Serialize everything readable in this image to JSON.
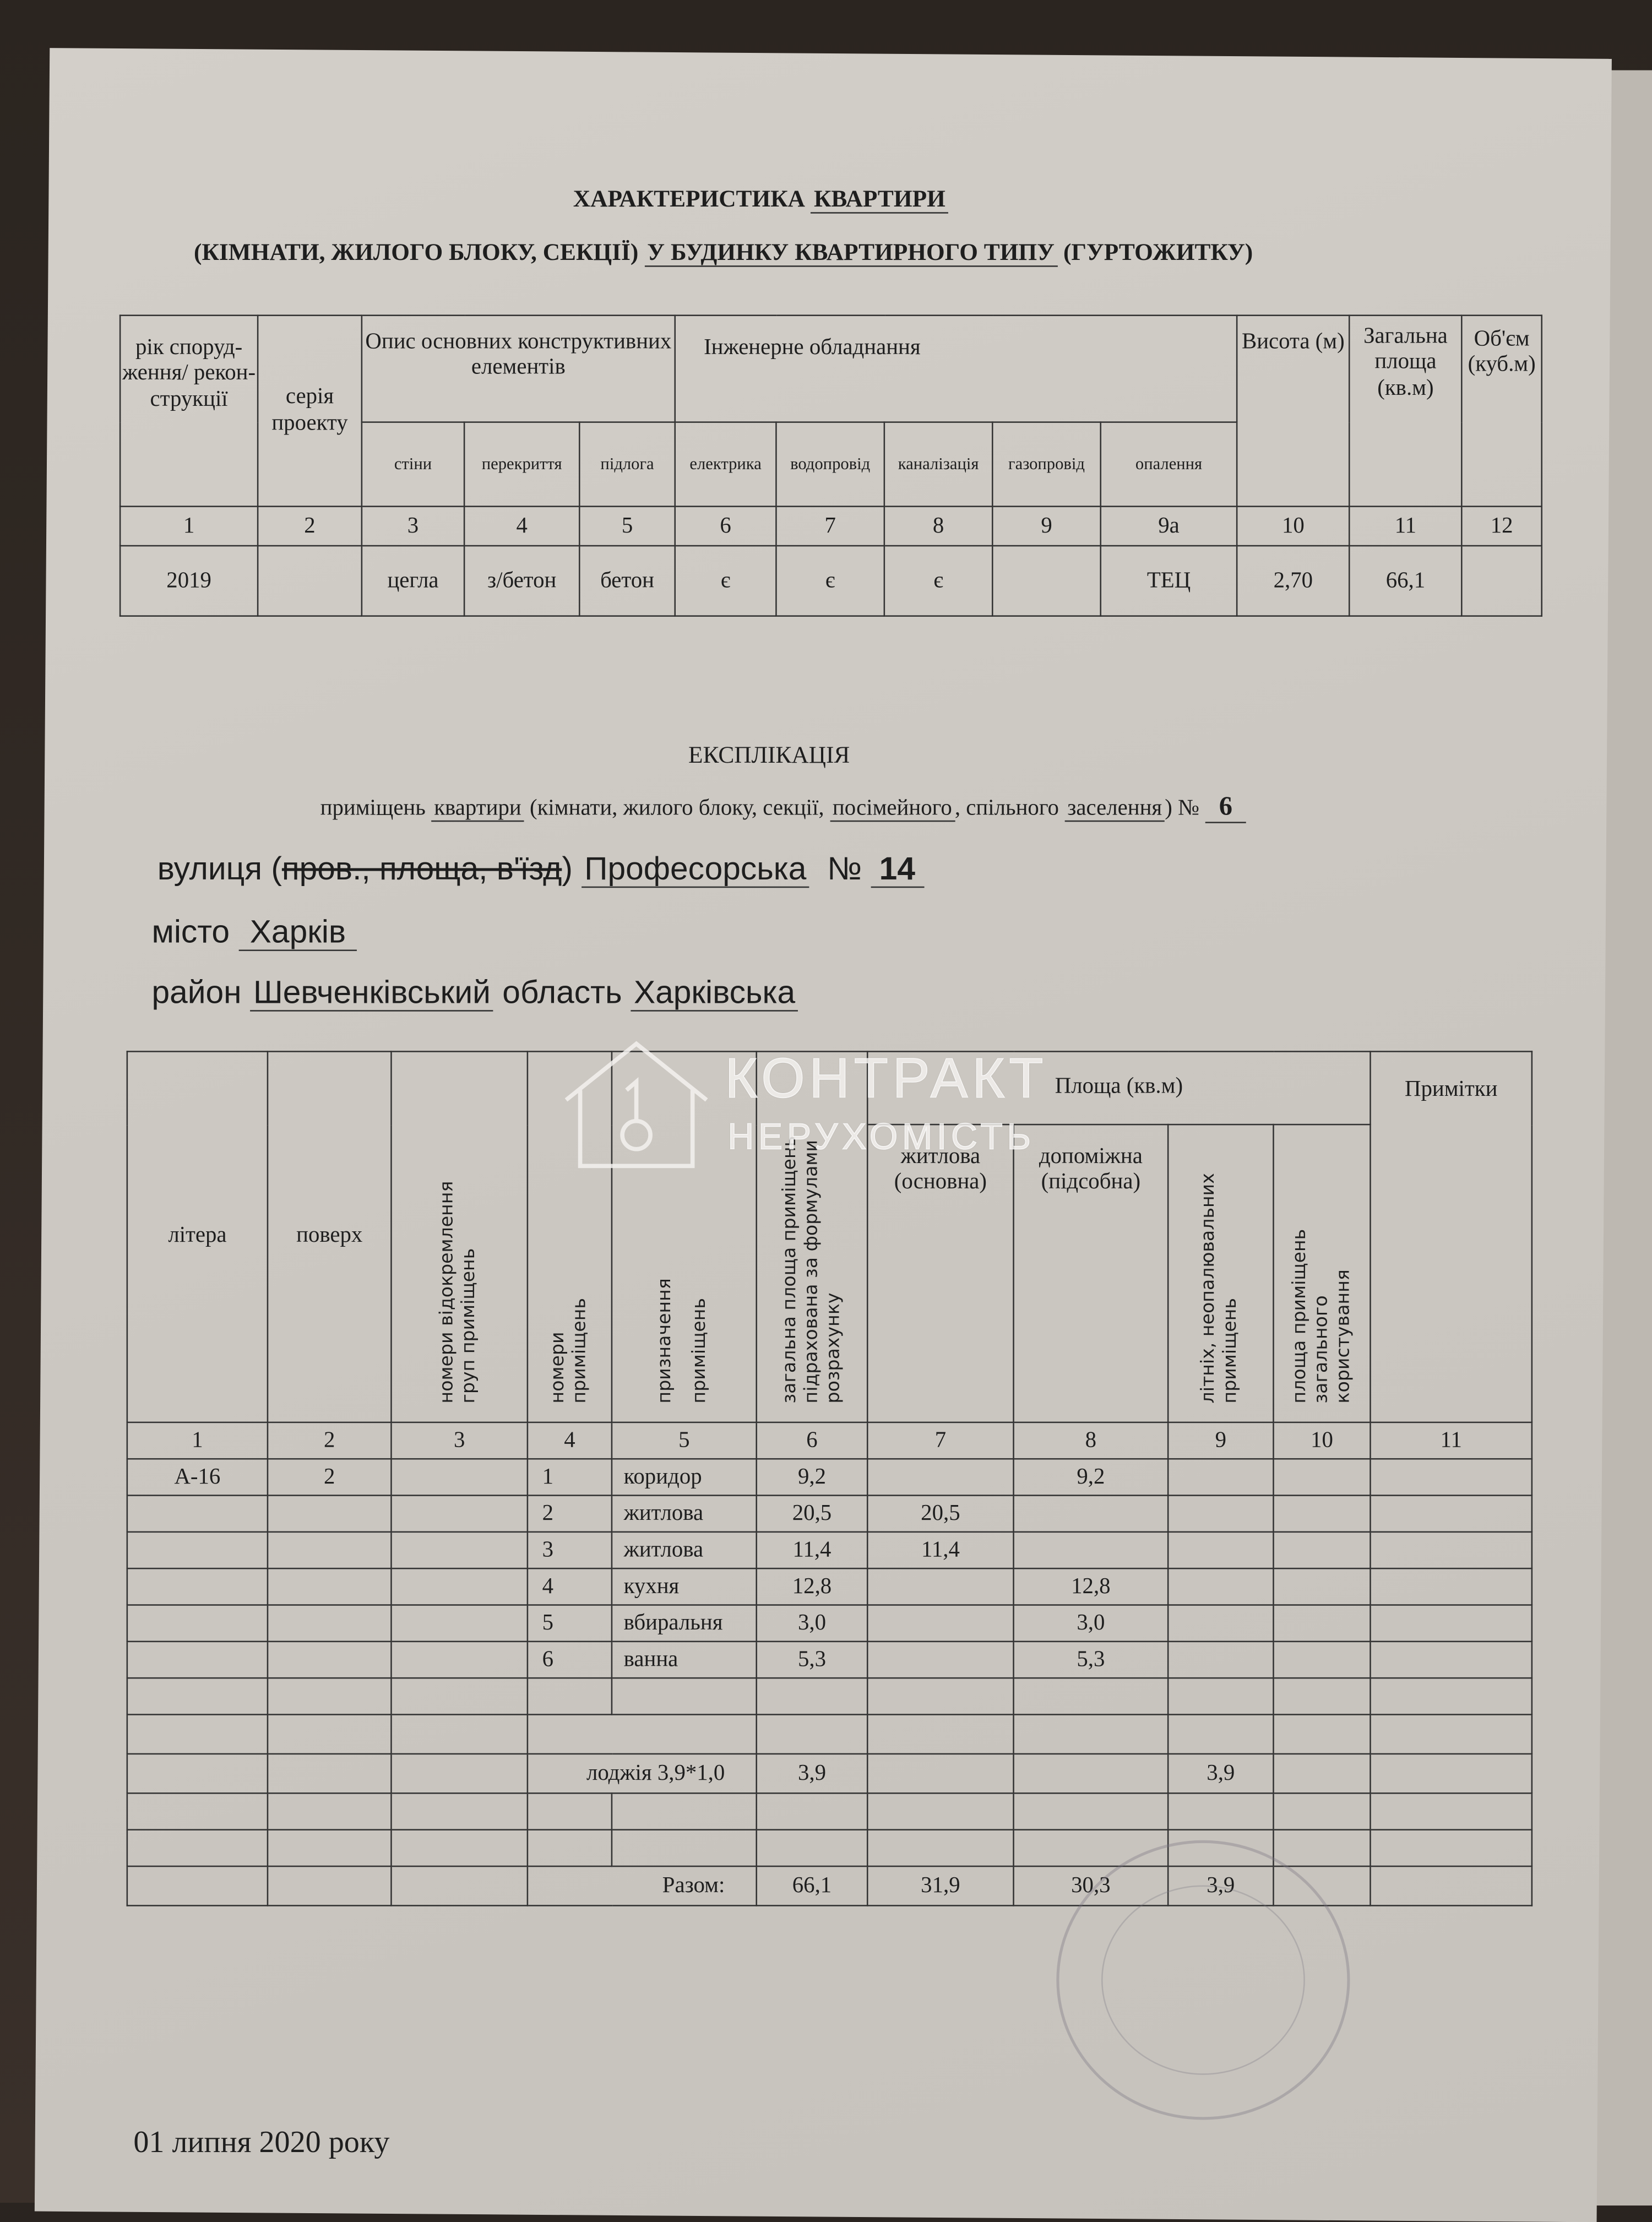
{
  "header": {
    "title_line1": "ХАРАКТЕРИСТИКА КВАРТИРИ",
    "title_line1_plain": "ХАРАКТЕРИСТИКА ",
    "title_line1_underlined": "КВАРТИРИ",
    "title_line2_plain": "(КІМНАТИ, ЖИЛОГО БЛОКУ, СЕКЦІЇ) ",
    "title_line2_underlined": "У БУДИНКУ КВАРТИРНОГО ТИПУ",
    "title_line2_end": " (ГУРТОЖИТКУ)"
  },
  "characteristics": {
    "headers": {
      "year": "рік споруд-ження/ рекон-струкції",
      "series": "серія проекту",
      "structural": "Опис основних конструктивних елементів",
      "engineering": "Інженерне обладнання",
      "height": "Висота (м)",
      "total_area": "Загальна площа (кв.м)",
      "volume": "Об'єм (куб.м)",
      "walls": "стіни",
      "ceilings": "перекриття",
      "floor": "підлога",
      "electric": "електрика",
      "water": "водопровід",
      "sewer": "каналізація",
      "gas": "газопровід",
      "heating": "опалення"
    },
    "column_numbers": [
      "1",
      "2",
      "3",
      "4",
      "5",
      "6",
      "7",
      "8",
      "9",
      "9а",
      "10",
      "11",
      "12"
    ],
    "values": [
      "2019",
      "",
      "цегла",
      "з/бетон",
      "бетон",
      "є",
      "є",
      "є",
      "",
      "ТЕЦ",
      "2,70",
      "66,1",
      ""
    ]
  },
  "explication": {
    "title": "ЕКСПЛІКАЦІЯ",
    "subtitle_a": "приміщень ",
    "subtitle_b": "квартири",
    "subtitle_c": " (кімнати, жилого блоку, секції, ",
    "subtitle_d": "посімейного",
    "subtitle_e": ", спільного ",
    "subtitle_f": "заселення",
    "subtitle_g": ")  №",
    "apartment_no": "6",
    "street_label": "вулиця  (",
    "street_struck": "пров., площа, в'їзд",
    "street_close": ")",
    "street": "Професорська",
    "house_label": "№",
    "house_no": "14",
    "city_label": "місто",
    "city": "Харків",
    "district_label": "район",
    "district": "Шевченківський",
    "region_label": "область",
    "region": "Харківська"
  },
  "rooms_table": {
    "headers": {
      "letter": "літера",
      "floor": "поверх",
      "group_numbers": "номери відокремлення груп приміщень",
      "room_numbers": "номери приміщень",
      "purpose": "призначення приміщень",
      "total": "загальна площа приміщень підрахована за формулами розрахунку",
      "area_group": "Площа (кв.м)",
      "living": "житлова (основна)",
      "auxiliary": "допоміжна (підсобна)",
      "summer": "літніх, неопалювальних приміщень",
      "common": "площа приміщень загального користування",
      "notes": "Примітки"
    },
    "column_numbers": [
      "1",
      "2",
      "3",
      "4",
      "5",
      "6",
      "7",
      "8",
      "9",
      "10",
      "11"
    ],
    "rows": [
      [
        "А-16",
        "2",
        "",
        "1",
        "коридор",
        "9,2",
        "",
        "9,2",
        "",
        "",
        ""
      ],
      [
        "",
        "",
        "",
        "2",
        "житлова",
        "20,5",
        "20,5",
        "",
        "",
        "",
        ""
      ],
      [
        "",
        "",
        "",
        "3",
        "житлова",
        "11,4",
        "11,4",
        "",
        "",
        "",
        ""
      ],
      [
        "",
        "",
        "",
        "4",
        "кухня",
        "12,8",
        "",
        "12,8",
        "",
        "",
        ""
      ],
      [
        "",
        "",
        "",
        "5",
        "вбиральня",
        "3,0",
        "",
        "3,0",
        "",
        "",
        ""
      ],
      [
        "",
        "",
        "",
        "6",
        "ванна",
        "5,3",
        "",
        "5,3",
        "",
        "",
        ""
      ],
      [
        "",
        "",
        "",
        "",
        "",
        "",
        "",
        "",
        "",
        "",
        ""
      ]
    ],
    "loggia_label": "лоджія 3,9*1,0",
    "loggia_values": [
      "3,9",
      "",
      "",
      "3,9",
      "",
      ""
    ],
    "total_label": "Разом:",
    "total_values": [
      "66,1",
      "31,9",
      "30,3",
      "3,9",
      "",
      ""
    ]
  },
  "watermark": {
    "line1": "КОНТРАКТ",
    "line2": "НЕРУХОМІСТЬ"
  },
  "footer": {
    "date": "01 липня 2020 року"
  }
}
